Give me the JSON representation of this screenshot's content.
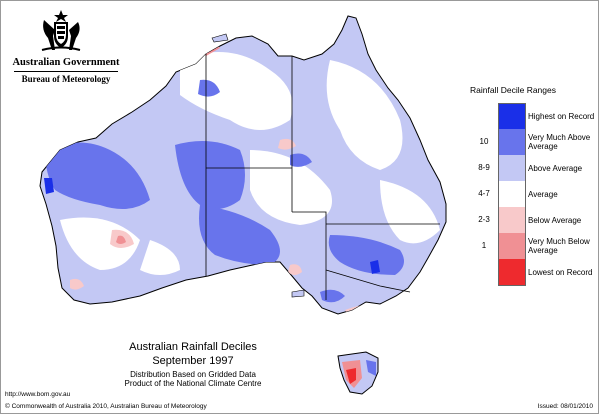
{
  "header": {
    "government": "Australian Government",
    "bureau": "Bureau of Meteorology"
  },
  "legend": {
    "title": "Rainfall Decile Ranges",
    "items": [
      {
        "range": "",
        "label": "Highest on Record",
        "color": "#1a2fe8"
      },
      {
        "range": "10",
        "label": "Very Much Above Average",
        "color": "#6874ec"
      },
      {
        "range": "8-9",
        "label": "Above Average",
        "color": "#c3c8f4"
      },
      {
        "range": "4-7",
        "label": "Average",
        "color": "#ffffff"
      },
      {
        "range": "2-3",
        "label": "Below Average",
        "color": "#f8c9ca"
      },
      {
        "range": "1",
        "label": "Very Much Below Average",
        "color": "#f09094"
      },
      {
        "range": "",
        "label": "Lowest on Record",
        "color": "#ee2a2e"
      }
    ]
  },
  "map_title": {
    "title": "Australian Rainfall Deciles",
    "period": "September 1997",
    "subtitle1": "Distribution Based on Gridded Data",
    "subtitle2": "Product of the National Climate Centre"
  },
  "footer": {
    "url": "http://www.bom.gov.au",
    "copyright": "© Commonwealth of Australia 2010, Australian Bureau of Meteorology",
    "issued": "Issued: 08/01/2010"
  }
}
